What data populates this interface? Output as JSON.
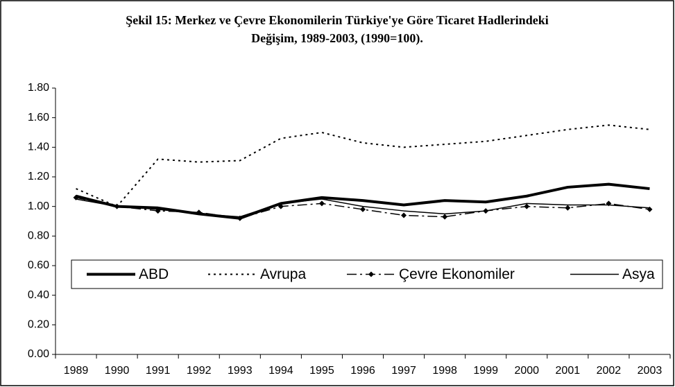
{
  "chart_data": {
    "type": "line",
    "title": [
      "Şekil 15: Merkez ve Çevre Ekonomilerin Türkiye'ye Göre Ticaret Hadlerindeki",
      "Değişim, 1989-2003, (1990=100)."
    ],
    "categories": [
      "1989",
      "1990",
      "1991",
      "1992",
      "1993",
      "1994",
      "1995",
      "1996",
      "1997",
      "1998",
      "1999",
      "2000",
      "2001",
      "2002",
      "2003"
    ],
    "series": [
      {
        "name": "ABD",
        "color": "#000000",
        "line_style": "solid",
        "line_width": 4,
        "values": [
          1.07,
          1.0,
          0.99,
          0.95,
          0.92,
          1.02,
          1.06,
          1.04,
          1.01,
          1.04,
          1.03,
          1.07,
          1.13,
          1.15,
          1.12
        ]
      },
      {
        "name": "Avrupa",
        "color": "#000000",
        "line_style": "dotted",
        "line_width": 2,
        "values": [
          1.12,
          1.0,
          1.32,
          1.3,
          1.31,
          1.46,
          1.5,
          1.43,
          1.4,
          1.42,
          1.44,
          1.48,
          1.52,
          1.55,
          1.52
        ]
      },
      {
        "name": "Çevre Ekonomiler",
        "color": "#000000",
        "line_style": "dashdot",
        "line_width": 1.5,
        "marker": "diamond",
        "values": [
          1.06,
          1.0,
          0.97,
          0.96,
          0.92,
          1.0,
          1.02,
          0.98,
          0.94,
          0.93,
          0.97,
          1.0,
          0.99,
          1.02,
          0.98
        ]
      },
      {
        "name": "Asya",
        "color": "#000000",
        "line_style": "solid",
        "line_width": 1.5,
        "values": [
          1.05,
          1.0,
          0.98,
          0.95,
          0.93,
          1.02,
          1.05,
          1.0,
          0.97,
          0.95,
          0.97,
          1.02,
          1.01,
          1.01,
          0.99
        ]
      }
    ],
    "ylim": [
      0,
      1.8
    ],
    "yticks": [
      {
        "value": 0,
        "label": "0.00"
      },
      {
        "value": 0.2,
        "label": "0.20"
      },
      {
        "value": 0.4,
        "label": "0.40"
      },
      {
        "value": 0.6,
        "label": "0.60"
      },
      {
        "value": 0.8,
        "label": "0.80"
      },
      {
        "value": 1.0,
        "label": "1.00"
      },
      {
        "value": 1.2,
        "label": "1.20"
      },
      {
        "value": 1.4,
        "label": "1.40"
      },
      {
        "value": 1.6,
        "label": "1.60"
      },
      {
        "value": 1.8,
        "label": "1.80"
      }
    ],
    "grid": false,
    "legend": "inside-bottom"
  }
}
